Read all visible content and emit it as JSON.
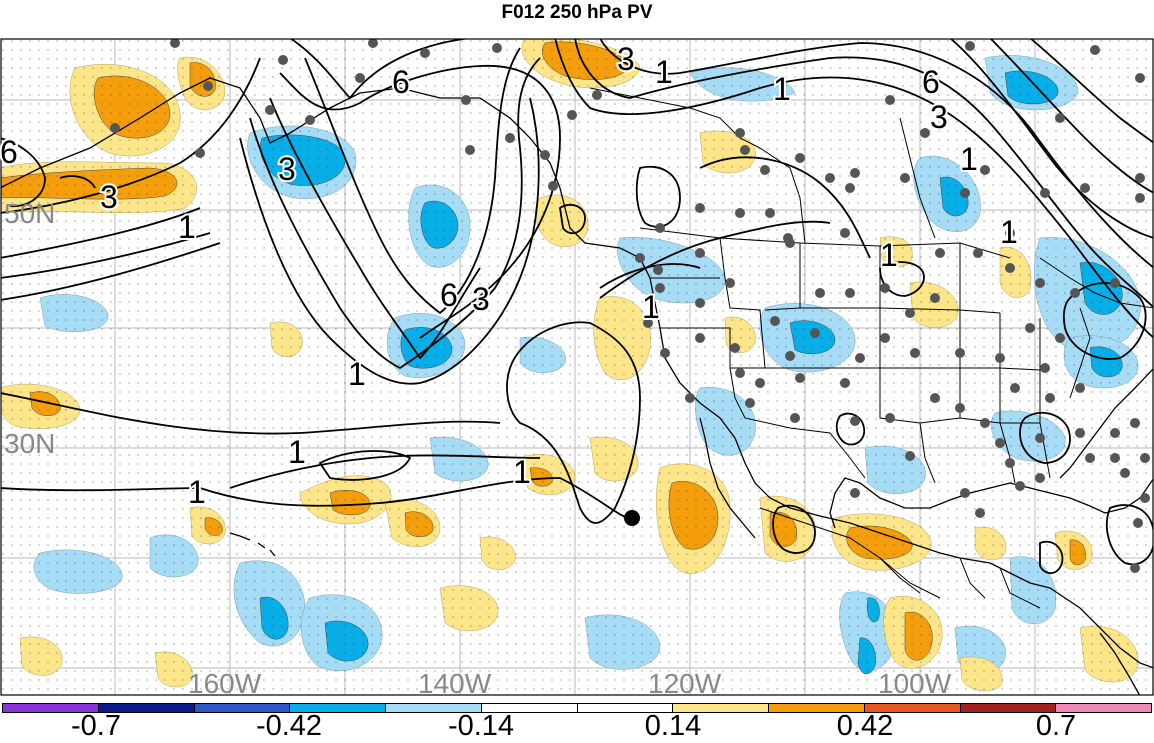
{
  "title": "F012 250 hPa PV",
  "lat_labels": [
    "50N",
    "30N"
  ],
  "lon_labels": [
    "160W",
    "140W",
    "120W",
    "100W"
  ],
  "contour_labels": [
    "3",
    "1",
    "6",
    "3",
    "1",
    "1",
    "6",
    "3",
    "1",
    "3",
    "1",
    "6",
    "6",
    "3",
    "1",
    "1",
    "1",
    "1",
    "1",
    "1"
  ],
  "colorbar": {
    "colors": [
      "#8a33d6",
      "#0b1b8e",
      "#2f56c7",
      "#08aee8",
      "#a7dcf6",
      "#ffffff",
      "#ffffff",
      "#fde68a",
      "#f59e0b",
      "#e8561f",
      "#a3211c",
      "#f088b8"
    ],
    "tick_labels": [
      "-0.7",
      "-0.42",
      "-0.14",
      "0.14",
      "0.42",
      "0.7"
    ]
  },
  "colors": {
    "light_blue": "#a7dcf6",
    "blue": "#08aee8",
    "light_orange": "#fde68a",
    "orange": "#f59e0b",
    "station_dot": "#555555",
    "contour": "#000000",
    "grid": "#b0b0b0",
    "axis_label": "#888888"
  },
  "marker": "black-dot"
}
